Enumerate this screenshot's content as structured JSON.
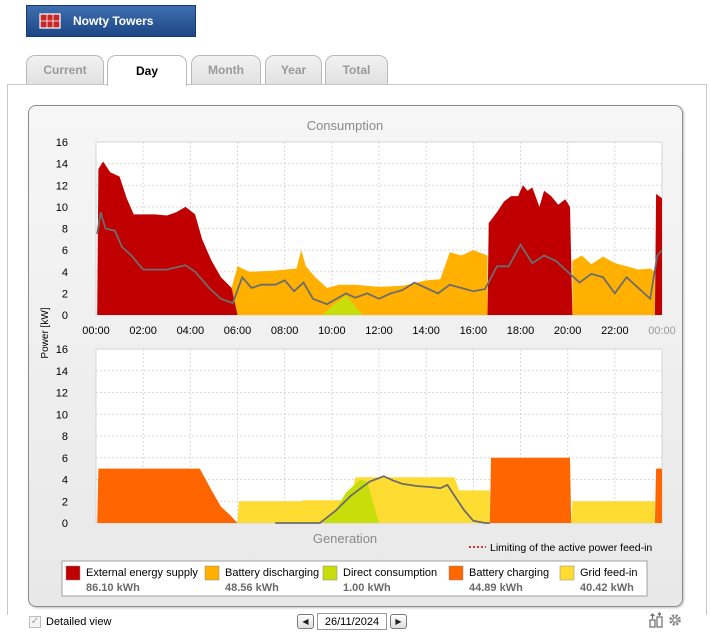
{
  "brand": {
    "name": "Nowty Towers"
  },
  "tabs": [
    {
      "label": "Current",
      "active": false
    },
    {
      "label": "Day",
      "active": true
    },
    {
      "label": "Month",
      "active": false
    },
    {
      "label": "Year",
      "active": false
    },
    {
      "label": "Total",
      "active": false
    }
  ],
  "chart_data": {
    "type": "area",
    "consumption_title": "Consumption",
    "generation_title": "Generation",
    "ylabel": "Power [kW]",
    "ylim": [
      0,
      16
    ],
    "yticks": [
      "0",
      "2",
      "4",
      "6",
      "8",
      "10",
      "12",
      "14",
      "16"
    ],
    "xlim": [
      "00:00",
      "24:00"
    ],
    "xticks": [
      "00:00",
      "02:00",
      "04:00",
      "06:00",
      "08:00",
      "10:00",
      "12:00",
      "14:00",
      "16:00",
      "18:00",
      "20:00",
      "22:00",
      "00:00"
    ],
    "grid": true,
    "limit_label": "Limiting of the active power feed-in",
    "legend": [
      {
        "name": "External energy supply",
        "value": "86.10 kWh",
        "color": "#c00000"
      },
      {
        "name": "Battery discharging",
        "value": "48.56 kWh",
        "color": "#ffb000"
      },
      {
        "name": "Direct consumption",
        "value": "1.00 kWh",
        "color": "#c8de0a"
      },
      {
        "name": "Battery charging",
        "value": "44.89 kWh",
        "color": "#ff6600"
      },
      {
        "name": "Grid feed-in",
        "value": "40.42 kWh",
        "color": "#ffdc32"
      }
    ],
    "consumption": {
      "external_supply": [
        [
          0.05,
          0
        ],
        [
          0.1,
          13.5
        ],
        [
          0.3,
          14.2
        ],
        [
          0.6,
          13.2
        ],
        [
          1.0,
          12.8
        ],
        [
          1.3,
          10.8
        ],
        [
          1.6,
          9.3
        ],
        [
          2.5,
          9.3
        ],
        [
          3.0,
          9.2
        ],
        [
          3.4,
          9.5
        ],
        [
          3.8,
          10.0
        ],
        [
          4.2,
          9.3
        ],
        [
          4.5,
          7.0
        ],
        [
          4.9,
          5.0
        ],
        [
          5.3,
          3.5
        ],
        [
          5.75,
          2.5
        ],
        [
          6.0,
          0
        ],
        [
          16.6,
          0
        ],
        [
          16.65,
          8.5
        ],
        [
          17.0,
          9.5
        ],
        [
          17.3,
          10.5
        ],
        [
          17.6,
          11.0
        ],
        [
          17.9,
          11.0
        ],
        [
          18.1,
          12.0
        ],
        [
          18.3,
          11.5
        ],
        [
          18.5,
          11.8
        ],
        [
          18.8,
          10.0
        ],
        [
          19.0,
          11.5
        ],
        [
          19.3,
          11.0
        ],
        [
          19.6,
          10.2
        ],
        [
          19.9,
          10.7
        ],
        [
          20.1,
          10.0
        ],
        [
          20.2,
          0
        ],
        [
          23.7,
          0
        ],
        [
          23.75,
          11.2
        ],
        [
          24.0,
          10.8
        ],
        [
          24.0,
          0
        ]
      ],
      "battery_discharging": [
        [
          5.6,
          0
        ],
        [
          5.75,
          2.5
        ],
        [
          6.0,
          4.5
        ],
        [
          6.5,
          4.0
        ],
        [
          7.5,
          4.1
        ],
        [
          8.5,
          4.3
        ],
        [
          8.7,
          6.0
        ],
        [
          8.9,
          4.5
        ],
        [
          9.3,
          3.5
        ],
        [
          9.8,
          2.5
        ],
        [
          10.3,
          2.8
        ],
        [
          11.0,
          2.8
        ],
        [
          12.0,
          2.6
        ],
        [
          13.0,
          2.7
        ],
        [
          14.0,
          3.2
        ],
        [
          14.6,
          3.3
        ],
        [
          15.0,
          5.8
        ],
        [
          15.5,
          5.5
        ],
        [
          16.0,
          6.0
        ],
        [
          16.6,
          5.5
        ],
        [
          16.6,
          0
        ],
        [
          20.2,
          0
        ],
        [
          20.2,
          5.0
        ],
        [
          20.6,
          5.5
        ],
        [
          21.0,
          4.7
        ],
        [
          21.5,
          5.4
        ],
        [
          22.0,
          4.8
        ],
        [
          22.5,
          4.5
        ],
        [
          23.0,
          4.2
        ],
        [
          23.5,
          4.3
        ],
        [
          23.7,
          4.0
        ],
        [
          23.7,
          0
        ]
      ],
      "direct_consumption": [
        [
          9.6,
          0
        ],
        [
          10.1,
          1.0
        ],
        [
          10.6,
          1.8
        ],
        [
          11.0,
          0.8
        ],
        [
          11.3,
          0
        ]
      ],
      "battery_line": [
        [
          0.05,
          7.5
        ],
        [
          0.2,
          9.5
        ],
        [
          0.4,
          8.0
        ],
        [
          0.8,
          7.8
        ],
        [
          1.1,
          6.3
        ],
        [
          1.5,
          5.5
        ],
        [
          2.0,
          4.2
        ],
        [
          3.0,
          4.2
        ],
        [
          3.4,
          4.4
        ],
        [
          3.8,
          4.6
        ],
        [
          4.2,
          4.0
        ],
        [
          4.8,
          2.5
        ],
        [
          5.3,
          1.5
        ],
        [
          5.8,
          1.1
        ],
        [
          6.2,
          3.5
        ],
        [
          6.6,
          2.5
        ],
        [
          7.0,
          2.8
        ],
        [
          7.6,
          2.8
        ],
        [
          8.0,
          3.2
        ],
        [
          8.4,
          2.2
        ],
        [
          8.8,
          3.0
        ],
        [
          9.2,
          1.5
        ],
        [
          9.8,
          1.0
        ],
        [
          10.2,
          1.5
        ],
        [
          10.6,
          2.0
        ],
        [
          11.0,
          1.6
        ],
        [
          11.5,
          2.0
        ],
        [
          12.0,
          1.5
        ],
        [
          12.5,
          2.0
        ],
        [
          13.0,
          2.3
        ],
        [
          13.5,
          3.0
        ],
        [
          14.0,
          2.5
        ],
        [
          14.5,
          2.0
        ],
        [
          15.0,
          2.8
        ],
        [
          15.5,
          2.5
        ],
        [
          16.0,
          2.2
        ],
        [
          16.5,
          2.4
        ],
        [
          17.0,
          4.5
        ],
        [
          17.5,
          4.5
        ],
        [
          18.0,
          6.5
        ],
        [
          18.5,
          4.8
        ],
        [
          19.0,
          5.5
        ],
        [
          19.5,
          5.0
        ],
        [
          20.0,
          4.0
        ],
        [
          20.5,
          3.0
        ],
        [
          21.0,
          3.8
        ],
        [
          21.5,
          3.5
        ],
        [
          22.0,
          2.0
        ],
        [
          22.5,
          3.5
        ],
        [
          23.0,
          2.5
        ],
        [
          23.5,
          1.5
        ],
        [
          23.8,
          5.5
        ],
        [
          24.0,
          6.0
        ]
      ]
    },
    "generation": {
      "battery_charging": [
        [
          0.05,
          0
        ],
        [
          0.1,
          5.0
        ],
        [
          4.4,
          5.0
        ],
        [
          4.9,
          3.0
        ],
        [
          5.3,
          1.5
        ],
        [
          5.7,
          0.7
        ],
        [
          6.0,
          0
        ],
        [
          16.7,
          0
        ],
        [
          16.75,
          6.0
        ],
        [
          20.1,
          6.0
        ],
        [
          20.15,
          0
        ],
        [
          23.7,
          0
        ],
        [
          23.75,
          5.0
        ],
        [
          24.0,
          5.0
        ],
        [
          24.0,
          0
        ]
      ],
      "grid_feed_in": [
        [
          6.0,
          0
        ],
        [
          6.05,
          2.0
        ],
        [
          8.7,
          2.0
        ],
        [
          8.8,
          2.1
        ],
        [
          10.8,
          2.1
        ],
        [
          11.0,
          4.2
        ],
        [
          15.2,
          4.2
        ],
        [
          15.4,
          3.0
        ],
        [
          16.7,
          3.0
        ],
        [
          16.7,
          0
        ],
        [
          20.15,
          0
        ],
        [
          20.2,
          2.0
        ],
        [
          23.7,
          2.0
        ],
        [
          23.7,
          0
        ]
      ],
      "direct_consumption": [
        [
          9.6,
          0
        ],
        [
          10.1,
          1.0
        ],
        [
          10.6,
          2.8
        ],
        [
          11.2,
          4.0
        ],
        [
          11.5,
          3.8
        ],
        [
          12.0,
          0
        ]
      ],
      "pv_line": [
        [
          7.6,
          0
        ],
        [
          9.5,
          0
        ],
        [
          10.2,
          1.2
        ],
        [
          10.8,
          2.5
        ],
        [
          11.6,
          3.8
        ],
        [
          12.2,
          4.3
        ],
        [
          12.6,
          3.9
        ],
        [
          13.0,
          3.6
        ],
        [
          13.6,
          3.4
        ],
        [
          14.2,
          3.3
        ],
        [
          14.6,
          3.2
        ],
        [
          14.9,
          3.5
        ],
        [
          15.2,
          2.5
        ],
        [
          15.6,
          1.2
        ],
        [
          16.0,
          0.2
        ],
        [
          16.5,
          0
        ],
        [
          16.7,
          0
        ]
      ]
    }
  },
  "footer": {
    "detailed_view": "Detailed view",
    "date": "26/11/2024"
  }
}
